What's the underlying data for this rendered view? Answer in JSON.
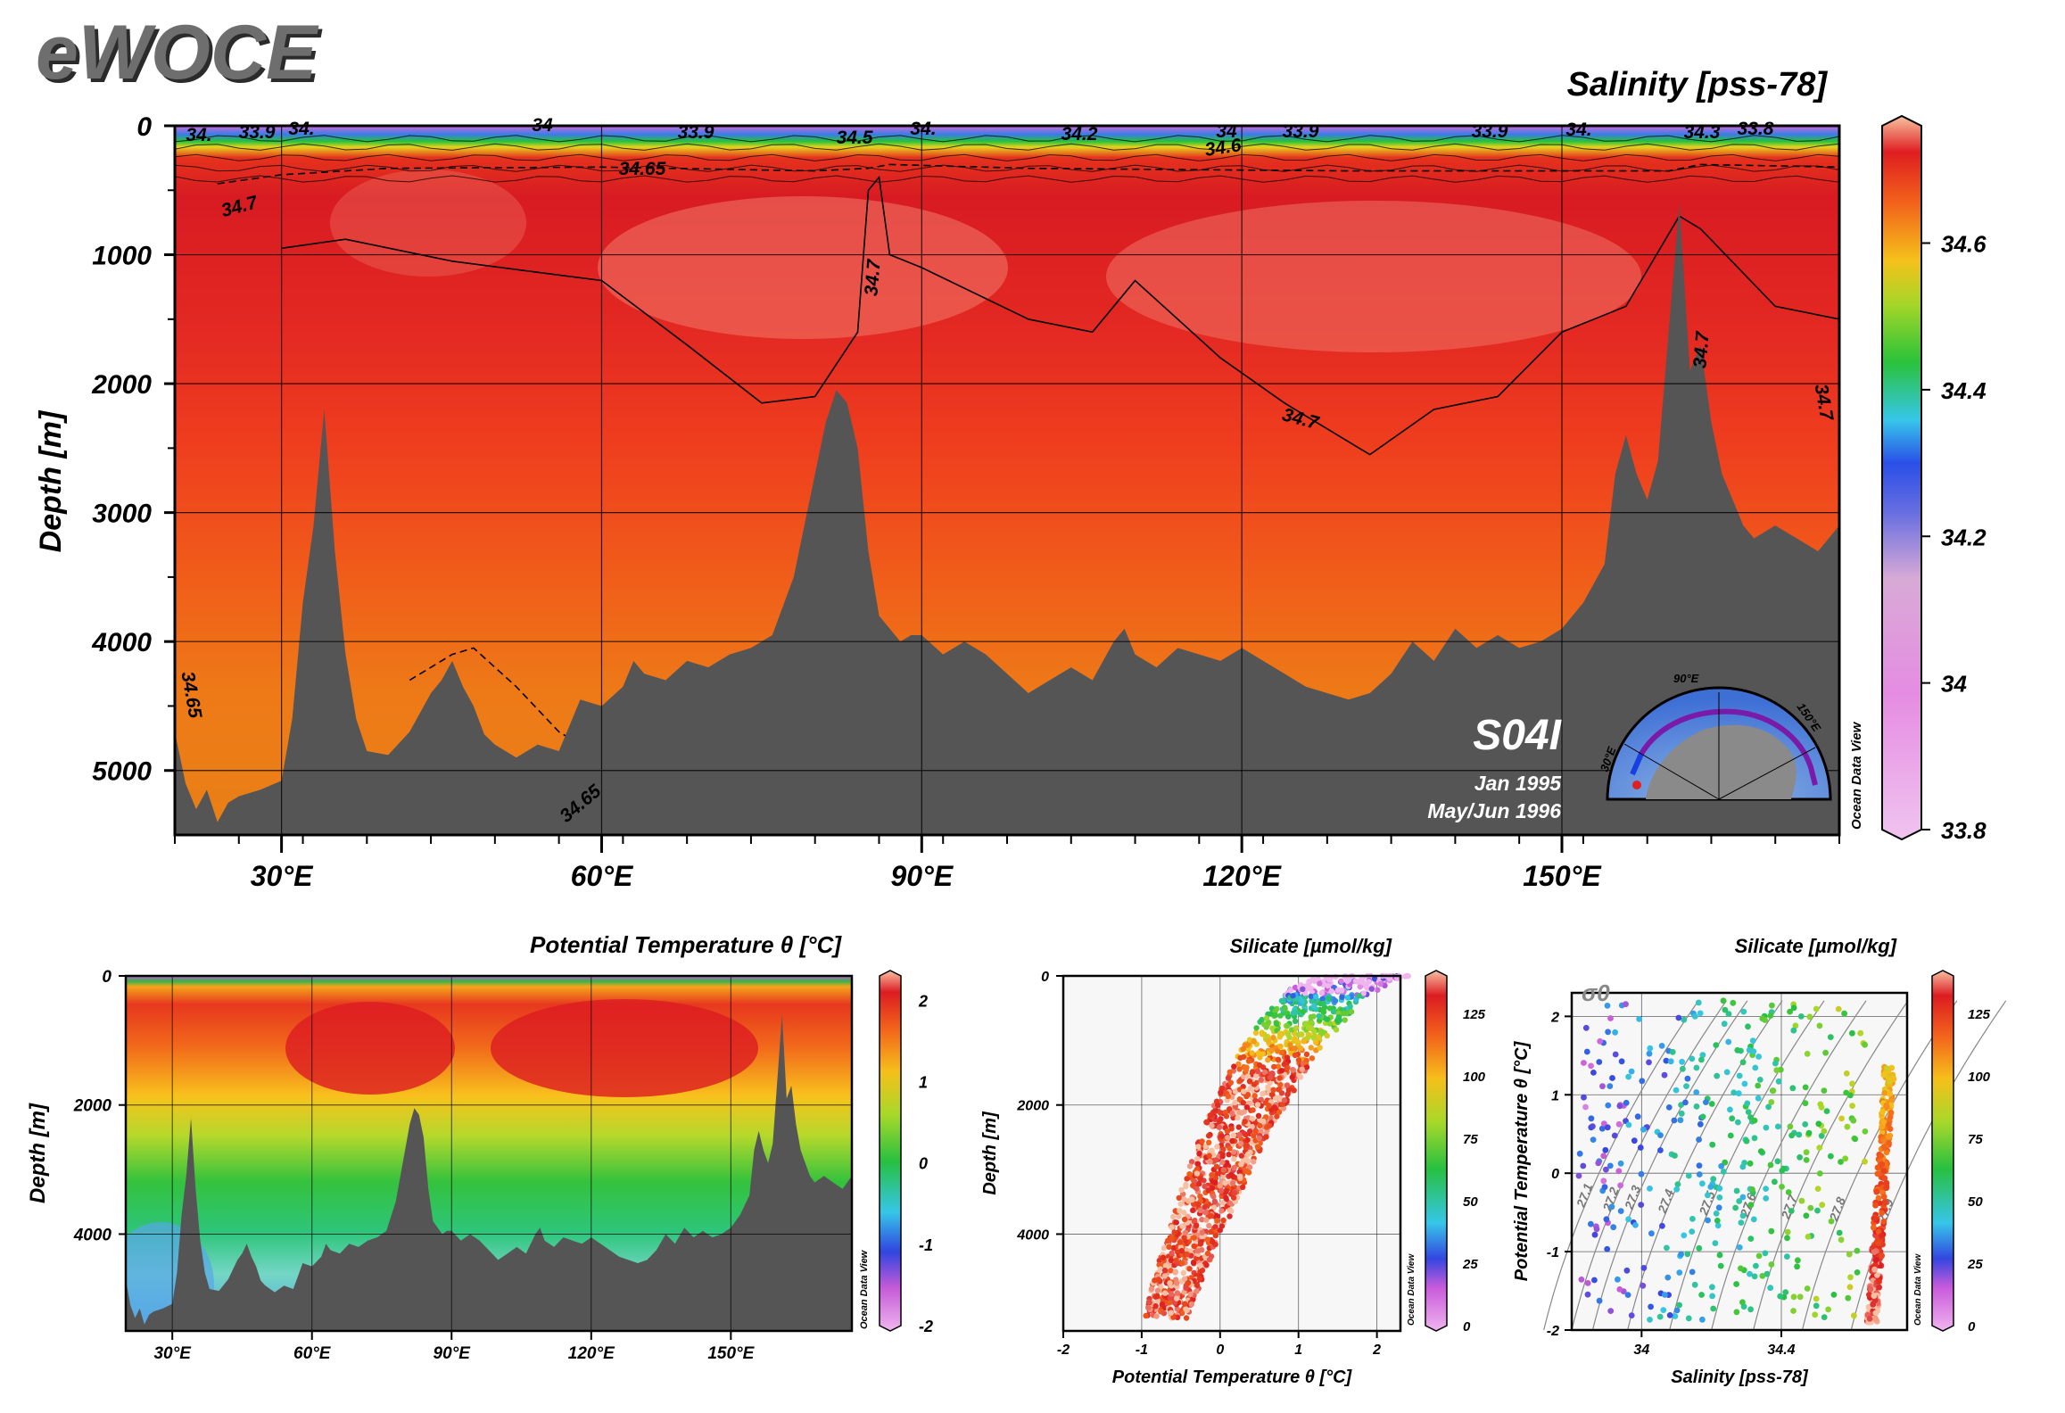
{
  "brand": "eWOCE",
  "chart_data": [
    {
      "id": "main",
      "type": "heatmap",
      "title": "Salinity [pss-78]",
      "ylabel": "Depth [m]",
      "xlabel": "",
      "xlim": [
        20,
        176
      ],
      "ylim": [
        5500,
        0
      ],
      "xticks": [
        30,
        60,
        90,
        120,
        150
      ],
      "xtick_labels": [
        "30°E",
        "60°E",
        "90°E",
        "120°E",
        "150°E"
      ],
      "yticks": [
        0,
        1000,
        2000,
        3000,
        4000,
        5000
      ],
      "ytick_labels": [
        "0",
        "1000",
        "2000",
        "3000",
        "4000",
        "5000"
      ],
      "colorbar": {
        "range": [
          33.8,
          34.76
        ],
        "ticks": [
          33.8,
          34,
          34.2,
          34.4,
          34.6
        ],
        "tick_labels": [
          "33.8",
          "34",
          "34.2",
          "34.4",
          "34.6"
        ],
        "label": "Ocean Data View"
      },
      "section_label": "S04I",
      "cruise_dates": [
        "Jan 1995",
        "May/Jun 1996"
      ],
      "inset_labels": [
        "90°E",
        "30°E",
        "150°E"
      ],
      "contour_labels": [
        "34.",
        "33.9",
        "34.",
        "34",
        "33.9",
        "34.5",
        "34.",
        "34.2",
        "34",
        "33.9",
        "33.9",
        "34.",
        "34.3",
        "33.8",
        "34.6",
        "34.65",
        "34.7",
        "34.7",
        "34.7",
        "34.7",
        "34.7",
        "34.65",
        "34.65"
      ],
      "bathymetry": [
        [
          20,
          4700
        ],
        [
          21,
          5100
        ],
        [
          22,
          5300
        ],
        [
          23,
          5150
        ],
        [
          24,
          5400
        ],
        [
          25,
          5250
        ],
        [
          26,
          5200
        ],
        [
          28,
          5150
        ],
        [
          30,
          5080
        ],
        [
          31,
          4600
        ],
        [
          32,
          3700
        ],
        [
          33,
          3100
        ],
        [
          34,
          2200
        ],
        [
          35,
          3300
        ],
        [
          36,
          4100
        ],
        [
          37,
          4600
        ],
        [
          38,
          4850
        ],
        [
          40,
          4880
        ],
        [
          42,
          4700
        ],
        [
          44,
          4400
        ],
        [
          45,
          4300
        ],
        [
          46,
          4150
        ],
        [
          47,
          4350
        ],
        [
          48,
          4500
        ],
        [
          49,
          4720
        ],
        [
          50,
          4800
        ],
        [
          52,
          4900
        ],
        [
          54,
          4800
        ],
        [
          56,
          4850
        ],
        [
          57,
          4650
        ],
        [
          58,
          4450
        ],
        [
          60,
          4500
        ],
        [
          62,
          4350
        ],
        [
          63,
          4150
        ],
        [
          64,
          4250
        ],
        [
          66,
          4300
        ],
        [
          68,
          4150
        ],
        [
          70,
          4200
        ],
        [
          72,
          4100
        ],
        [
          74,
          4050
        ],
        [
          76,
          3950
        ],
        [
          78,
          3500
        ],
        [
          80,
          2700
        ],
        [
          81,
          2300
        ],
        [
          82,
          2050
        ],
        [
          83,
          2150
        ],
        [
          84,
          2500
        ],
        [
          85,
          3300
        ],
        [
          86,
          3800
        ],
        [
          87,
          3900
        ],
        [
          88,
          4000
        ],
        [
          89,
          3950
        ],
        [
          90,
          3950
        ],
        [
          92,
          4100
        ],
        [
          94,
          4000
        ],
        [
          96,
          4100
        ],
        [
          98,
          4250
        ],
        [
          100,
          4400
        ],
        [
          102,
          4300
        ],
        [
          104,
          4200
        ],
        [
          106,
          4300
        ],
        [
          108,
          4000
        ],
        [
          109,
          3900
        ],
        [
          110,
          4100
        ],
        [
          112,
          4200
        ],
        [
          114,
          4050
        ],
        [
          116,
          4100
        ],
        [
          118,
          4150
        ],
        [
          120,
          4050
        ],
        [
          122,
          4150
        ],
        [
          124,
          4250
        ],
        [
          126,
          4350
        ],
        [
          128,
          4400
        ],
        [
          130,
          4450
        ],
        [
          132,
          4400
        ],
        [
          134,
          4250
        ],
        [
          136,
          4000
        ],
        [
          138,
          4150
        ],
        [
          140,
          3900
        ],
        [
          142,
          4050
        ],
        [
          144,
          3950
        ],
        [
          146,
          4050
        ],
        [
          148,
          4000
        ],
        [
          150,
          3900
        ],
        [
          152,
          3700
        ],
        [
          154,
          3400
        ],
        [
          155,
          2700
        ],
        [
          156,
          2400
        ],
        [
          157,
          2700
        ],
        [
          158,
          2900
        ],
        [
          159,
          2600
        ],
        [
          160,
          1600
        ],
        [
          161,
          600
        ],
        [
          162,
          1900
        ],
        [
          163,
          1700
        ],
        [
          164,
          2300
        ],
        [
          165,
          2700
        ],
        [
          166,
          2900
        ],
        [
          167,
          3100
        ],
        [
          168,
          3200
        ],
        [
          170,
          3100
        ],
        [
          172,
          3200
        ],
        [
          174,
          3300
        ],
        [
          176,
          3100
        ]
      ]
    },
    {
      "id": "theta_section",
      "type": "heatmap",
      "title": "Potential Temperature θ [°C]",
      "ylabel": "Depth [m]",
      "xlim": [
        20,
        176
      ],
      "ylim": [
        5500,
        0
      ],
      "xticks": [
        30,
        60,
        90,
        120,
        150
      ],
      "xtick_labels": [
        "30°E",
        "60°E",
        "90°E",
        "120°E",
        "150°E"
      ],
      "yticks": [
        0,
        2000,
        4000
      ],
      "ytick_labels": [
        "0",
        "2000",
        "4000"
      ],
      "colorbar": {
        "range": [
          -2,
          2.3
        ],
        "ticks": [
          -2,
          -1,
          0,
          1,
          2
        ],
        "tick_labels": [
          "-2",
          "-1",
          "0",
          "1",
          "2"
        ],
        "label": "Ocean Data View"
      }
    },
    {
      "id": "silicate_depth",
      "type": "scatter",
      "title": "Silicate [µmol/kg]",
      "xlabel": "Potential Temperature θ [°C]",
      "ylabel": "Depth [m]",
      "xlim": [
        -2,
        2.3
      ],
      "ylim": [
        5500,
        0
      ],
      "xticks": [
        -2,
        -1,
        0,
        1,
        2
      ],
      "xtick_labels": [
        "-2",
        "-1",
        "0",
        "1",
        "2"
      ],
      "yticks": [
        0,
        2000,
        4000
      ],
      "ytick_labels": [
        "0",
        "2000",
        "4000"
      ],
      "colorbar": {
        "range": [
          0,
          140
        ],
        "ticks": [
          0,
          25,
          50,
          75,
          100,
          125
        ],
        "tick_labels": [
          "0",
          "25",
          "50",
          "75",
          "100",
          "125"
        ],
        "label": "Ocean Data View"
      }
    },
    {
      "id": "theta_s",
      "type": "scatter",
      "title": "Silicate [µmol/kg]",
      "xlabel": "Salinity [pss-78]",
      "ylabel": "Potential Temperature θ [°C]",
      "xlim": [
        33.8,
        34.76
      ],
      "ylim": [
        -2,
        2.3
      ],
      "xticks": [
        34,
        34.4
      ],
      "xtick_labels": [
        "34",
        "34.4"
      ],
      "yticks": [
        -2,
        -1,
        0,
        1,
        2
      ],
      "ytick_labels": [
        "-2",
        "-1",
        "0",
        "1",
        "2"
      ],
      "sigma_label": "σ0",
      "isopycnal_labels": [
        "27.1",
        "27.3",
        "27.2",
        "27.4",
        "27.5",
        "27.6",
        "27.7",
        "27.8",
        "27.9"
      ],
      "colorbar": {
        "range": [
          0,
          140
        ],
        "ticks": [
          0,
          25,
          50,
          75,
          100,
          125
        ],
        "tick_labels": [
          "0",
          "25",
          "50",
          "75",
          "100",
          "125"
        ],
        "label": "Ocean Data View"
      }
    }
  ]
}
